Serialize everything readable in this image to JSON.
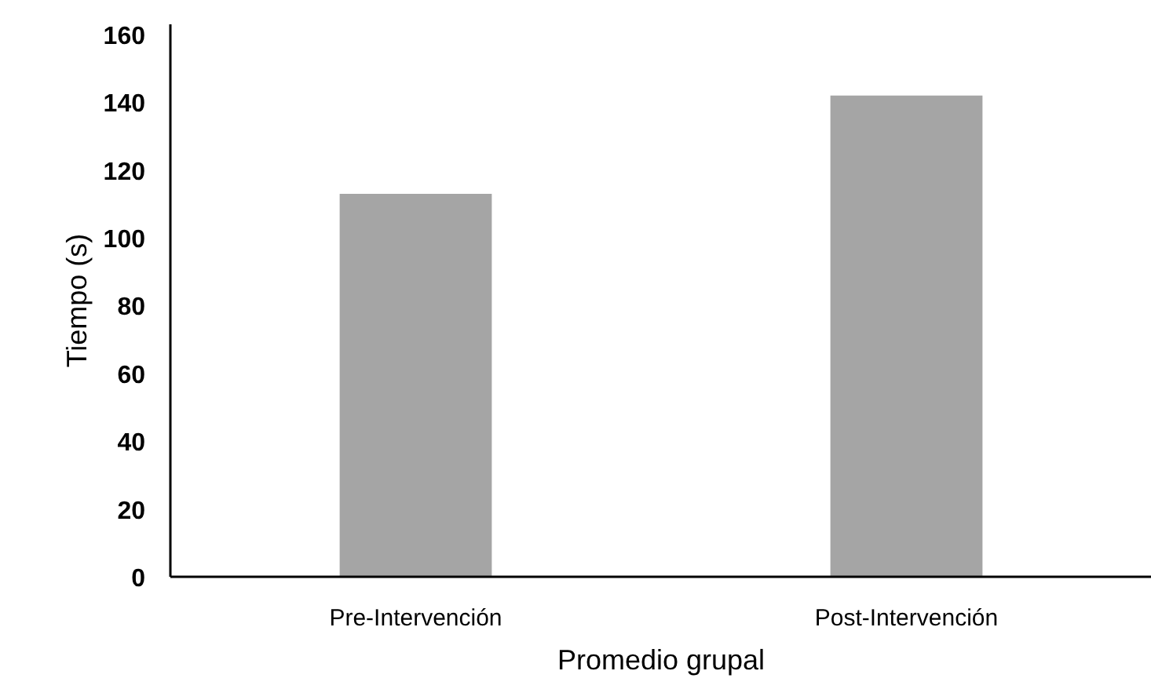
{
  "chart_data": {
    "type": "bar",
    "xlabel": "Promedio grupal",
    "ylabel": "Tiempo (s)",
    "categories": [
      "Pre-Intervención",
      "Post-Intervención"
    ],
    "values": [
      113,
      142
    ],
    "color": "#a5a5a5",
    "ylim": [
      0,
      163
    ],
    "yticks": [
      0,
      20,
      40,
      60,
      80,
      100,
      120,
      140,
      160
    ],
    "grid": false
  }
}
